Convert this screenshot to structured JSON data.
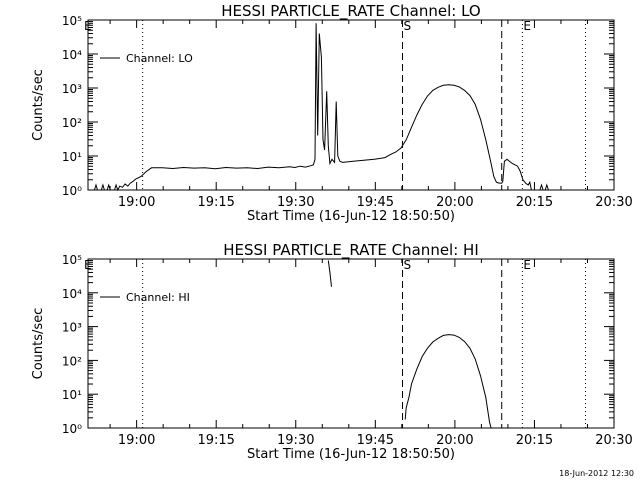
{
  "footer_timestamp": "18-Jun-2012 12:30",
  "chart_data": [
    {
      "type": "line",
      "title": "HESSI PARTICLE_RATE Channel: LO",
      "xlabel": "Start Time (16-Jun-12 18:50:50)",
      "ylabel": "Counts/sec",
      "yscale": "log",
      "ylim": [
        1,
        100000
      ],
      "x_unit": "minutes after 18:50:50 (start time)",
      "xlim": [
        0,
        99.17
      ],
      "x_ticks": [
        {
          "x": 9.17,
          "label": "19:00"
        },
        {
          "x": 24.17,
          "label": "19:15"
        },
        {
          "x": 39.17,
          "label": "19:30"
        },
        {
          "x": 54.17,
          "label": "19:45"
        },
        {
          "x": 69.17,
          "label": "20:00"
        },
        {
          "x": 84.17,
          "label": "20:15"
        },
        {
          "x": 99.17,
          "label": "20:30"
        }
      ],
      "y_ticks": [
        {
          "y": 1,
          "label": "10⁰"
        },
        {
          "y": 10,
          "label": "10¹"
        },
        {
          "y": 100,
          "label": "10²"
        },
        {
          "y": 1000,
          "label": "10³"
        },
        {
          "y": 10000,
          "label": "10⁴"
        },
        {
          "y": 100000,
          "label": "10⁵"
        }
      ],
      "legend": "Channel: LO",
      "markers": [
        {
          "x": 59.3,
          "label": "S",
          "style": "dashed"
        },
        {
          "x": 78.0,
          "label": "",
          "style": "dashed"
        },
        {
          "x": 81.9,
          "label": "E",
          "style": "dotted"
        },
        {
          "x": 10.3,
          "label": "",
          "style": "dotted"
        },
        {
          "x": 93.8,
          "label": "",
          "style": "dotted"
        },
        {
          "x": 0.0,
          "label": "E",
          "style": "none"
        }
      ],
      "series": [
        {
          "segments": [
            [
              [
                1.2,
                0.7
              ],
              [
                1.5,
                1.4
              ],
              [
                1.8,
                0.7
              ],
              [
                2.5,
                0.7
              ],
              [
                2.8,
                1.4
              ],
              [
                3.1,
                0.7
              ],
              [
                3.6,
                0.7
              ],
              [
                3.9,
                1.4
              ],
              [
                4.2,
                0.7
              ],
              [
                5.0,
                0.7
              ],
              [
                5.3,
                1.4
              ],
              [
                5.6,
                0.7
              ],
              [
                6.0,
                1.3
              ],
              [
                6.5,
                1.2
              ],
              [
                7.0,
                1.5
              ],
              [
                7.5,
                1.3
              ],
              [
                8.0,
                1.6
              ],
              [
                8.5,
                1.8
              ],
              [
                9.0,
                2.1
              ],
              [
                10.0,
                2.5
              ],
              [
                11.0,
                3.5
              ],
              [
                12.0,
                4.5
              ],
              [
                14.0,
                4.5
              ],
              [
                16.0,
                4.3
              ],
              [
                18.0,
                4.6
              ],
              [
                20.0,
                4.4
              ],
              [
                22.0,
                4.5
              ],
              [
                24.0,
                4.2
              ],
              [
                26.0,
                4.6
              ],
              [
                28.0,
                4.4
              ],
              [
                30.0,
                4.5
              ],
              [
                32.0,
                4.3
              ],
              [
                34.0,
                4.7
              ],
              [
                36.0,
                4.5
              ],
              [
                38.0,
                4.8
              ],
              [
                39.0,
                4.6
              ],
              [
                40.0,
                5.0
              ],
              [
                41.0,
                4.7
              ],
              [
                42.0,
                5.2
              ],
              [
                42.5,
                5.5
              ],
              [
                42.8,
                8.0
              ],
              [
                43.0,
                80000
              ],
              [
                43.3,
                40
              ],
              [
                43.6,
                40000
              ],
              [
                44.0,
                8000
              ],
              [
                44.3,
                30
              ],
              [
                44.6,
                15
              ],
              [
                45.0,
                800
              ],
              [
                45.3,
                20
              ],
              [
                45.6,
                6
              ],
              [
                46.0,
                8
              ],
              [
                46.5,
                6.5
              ],
              [
                46.8,
                400
              ],
              [
                47.1,
                10
              ],
              [
                47.5,
                7
              ],
              [
                48.0,
                6.5
              ],
              [
                50.0,
                7
              ],
              [
                52.0,
                7.5
              ],
              [
                54.0,
                8
              ],
              [
                56.0,
                9
              ],
              [
                57.0,
                11
              ],
              [
                58.0,
                13
              ],
              [
                59.0,
                17
              ],
              [
                60.0,
                30
              ],
              [
                61.0,
                70
              ],
              [
                62.0,
                160
              ],
              [
                63.0,
                330
              ],
              [
                64.0,
                580
              ],
              [
                65.0,
                850
              ],
              [
                66.0,
                1050
              ],
              [
                67.0,
                1200
              ],
              [
                68.0,
                1250
              ],
              [
                69.0,
                1200
              ],
              [
                70.0,
                1080
              ],
              [
                71.0,
                850
              ],
              [
                72.0,
                600
              ],
              [
                73.0,
                330
              ],
              [
                74.0,
                120
              ],
              [
                75.0,
                30
              ],
              [
                76.0,
                6
              ],
              [
                76.5,
                2.5
              ],
              [
                77.0,
                1.7
              ],
              [
                77.5,
                1.6
              ],
              [
                78.0,
                1.6
              ],
              [
                78.2,
                1.8
              ],
              [
                78.5,
                7
              ],
              [
                79.0,
                8
              ],
              [
                80.0,
                6
              ],
              [
                81.0,
                5
              ],
              [
                81.5,
                3.5
              ],
              [
                82.0,
                2.0
              ],
              [
                82.5,
                1.6
              ],
              [
                83.0,
                1.4
              ],
              [
                83.3,
                1.7
              ],
              [
                83.6,
                0.8
              ]
            ],
            [
              [
                85.2,
                0.7
              ],
              [
                85.5,
                1.4
              ],
              [
                85.8,
                0.7
              ],
              [
                86.2,
                0.7
              ],
              [
                86.5,
                1.4
              ],
              [
                86.8,
                0.7
              ]
            ]
          ]
        }
      ]
    },
    {
      "type": "line",
      "title": "HESSI PARTICLE_RATE Channel: HI",
      "xlabel": "Start Time (16-Jun-12 18:50:50)",
      "ylabel": "Counts/sec",
      "yscale": "log",
      "ylim": [
        1,
        100000
      ],
      "x_unit": "minutes after 18:50:50 (start time)",
      "xlim": [
        0,
        99.17
      ],
      "x_ticks": [
        {
          "x": 9.17,
          "label": "19:00"
        },
        {
          "x": 24.17,
          "label": "19:15"
        },
        {
          "x": 39.17,
          "label": "19:30"
        },
        {
          "x": 54.17,
          "label": "19:45"
        },
        {
          "x": 69.17,
          "label": "20:00"
        },
        {
          "x": 84.17,
          "label": "20:15"
        },
        {
          "x": 99.17,
          "label": "20:30"
        }
      ],
      "y_ticks": [
        {
          "y": 1,
          "label": "10⁰"
        },
        {
          "y": 10,
          "label": "10¹"
        },
        {
          "y": 100,
          "label": "10²"
        },
        {
          "y": 1000,
          "label": "10³"
        },
        {
          "y": 10000,
          "label": "10⁴"
        },
        {
          "y": 100000,
          "label": "10⁵"
        }
      ],
      "legend": "Channel: HI",
      "markers": [
        {
          "x": 59.3,
          "label": "S",
          "style": "dashed"
        },
        {
          "x": 78.0,
          "label": "",
          "style": "dashed"
        },
        {
          "x": 81.9,
          "label": "E",
          "style": "dotted"
        },
        {
          "x": 10.3,
          "label": "",
          "style": "dotted"
        },
        {
          "x": 93.8,
          "label": "",
          "style": "dotted"
        },
        {
          "x": 0.0,
          "label": "E",
          "style": "none"
        }
      ],
      "series": [
        {
          "segments": [
            [
              [
                45.3,
                90000
              ],
              [
                45.6,
                40000
              ],
              [
                45.9,
                15000
              ]
            ],
            [
              [
                59.8,
                1.8
              ],
              [
                60.0,
                4
              ],
              [
                60.5,
                8
              ],
              [
                61.0,
                20
              ],
              [
                62.0,
                55
              ],
              [
                63.0,
                130
              ],
              [
                64.0,
                230
              ],
              [
                65.0,
                350
              ],
              [
                66.0,
                450
              ],
              [
                67.0,
                550
              ],
              [
                68.0,
                580
              ],
              [
                69.0,
                560
              ],
              [
                70.0,
                480
              ],
              [
                71.0,
                360
              ],
              [
                72.0,
                230
              ],
              [
                73.0,
                110
              ],
              [
                74.0,
                35
              ],
              [
                75.0,
                8
              ],
              [
                75.7,
                1.5
              ],
              [
                76.0,
                0.6
              ]
            ]
          ]
        }
      ]
    }
  ]
}
